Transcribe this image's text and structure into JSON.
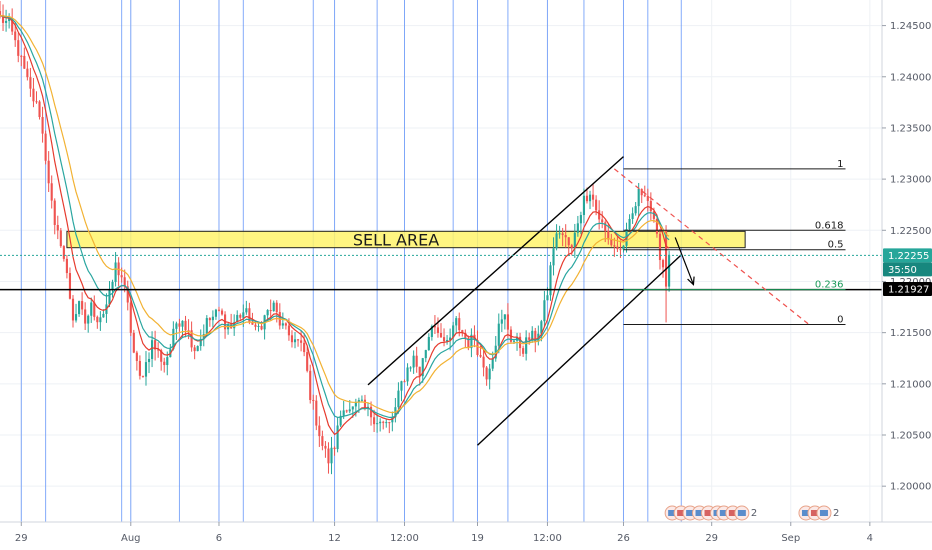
{
  "colors": {
    "bull": "#26a69a",
    "bear": "#ef5350",
    "ema_fast": "#e63b2e",
    "ema_mid": "#2aa6a0",
    "ema_slow": "#f2b233",
    "session_line": "#5b8ff9",
    "sell_area": "#fff36b",
    "fib_line": "#1a1a1a",
    "fib_236": "#1c9a5a",
    "grid": "#eef1f5",
    "badge_current": "#26a69a",
    "badge_timer": "#17877e",
    "badge_level": "#000000"
  },
  "chart_data": {
    "type": "candlestick",
    "symbol_hint": "GBP/USD-like price scale",
    "y_axis": {
      "side": "right",
      "ylim": [
        1.1965,
        1.2475
      ],
      "ticks": [
        "1.24500",
        "1.24000",
        "1.23500",
        "1.23000",
        "1.22500",
        "1.22000",
        "1.21500",
        "1.21000",
        "1.20500",
        "1.20000"
      ]
    },
    "x_axis": {
      "ticks": [
        {
          "label": "29",
          "i": 7
        },
        {
          "label": "Aug",
          "i": 43
        },
        {
          "label": "6",
          "i": 72
        },
        {
          "label": "12",
          "i": 110
        },
        {
          "label": "12:00",
          "i": 133
        },
        {
          "label": "19",
          "i": 157
        },
        {
          "label": "12:00",
          "i": 180
        },
        {
          "label": "26",
          "i": 205
        },
        {
          "label": "29",
          "i": 234
        },
        {
          "label": "Sep",
          "i": 260
        },
        {
          "label": "4",
          "i": 286
        }
      ]
    },
    "session_lines": [
      7,
      15,
      40,
      43,
      59,
      72,
      80,
      103,
      110,
      124,
      133,
      149,
      157,
      167,
      180,
      192,
      205,
      213,
      224
    ],
    "waypoints": [
      [
        0,
        1.2458
      ],
      [
        3,
        1.245
      ],
      [
        6,
        1.2425
      ],
      [
        10,
        1.2385
      ],
      [
        13,
        1.2365
      ],
      [
        16,
        1.23
      ],
      [
        18,
        1.225
      ],
      [
        20,
        1.224
      ],
      [
        22,
        1.2205
      ],
      [
        24,
        1.2165
      ],
      [
        26,
        1.2175
      ],
      [
        28,
        1.216
      ],
      [
        30,
        1.2175
      ],
      [
        32,
        1.2165
      ],
      [
        34,
        1.217
      ],
      [
        36,
        1.2185
      ],
      [
        38,
        1.2215
      ],
      [
        40,
        1.2205
      ],
      [
        42,
        1.2175
      ],
      [
        44,
        1.213
      ],
      [
        46,
        1.2105
      ],
      [
        48,
        1.212
      ],
      [
        50,
        1.214
      ],
      [
        52,
        1.213
      ],
      [
        54,
        1.212
      ],
      [
        56,
        1.2135
      ],
      [
        58,
        1.216
      ],
      [
        60,
        1.2165
      ],
      [
        62,
        1.215
      ],
      [
        64,
        1.2135
      ],
      [
        66,
        1.2145
      ],
      [
        68,
        1.216
      ],
      [
        70,
        1.2165
      ],
      [
        72,
        1.217
      ],
      [
        74,
        1.216
      ],
      [
        76,
        1.2155
      ],
      [
        78,
        1.2165
      ],
      [
        80,
        1.217
      ],
      [
        82,
        1.2165
      ],
      [
        84,
        1.215
      ],
      [
        86,
        1.216
      ],
      [
        88,
        1.217
      ],
      [
        90,
        1.2175
      ],
      [
        92,
        1.216
      ],
      [
        94,
        1.215
      ],
      [
        96,
        1.2145
      ],
      [
        98,
        1.214
      ],
      [
        100,
        1.213
      ],
      [
        102,
        1.209
      ],
      [
        104,
        1.2065
      ],
      [
        106,
        1.204
      ],
      [
        108,
        1.2025
      ],
      [
        110,
        1.204
      ],
      [
        112,
        1.207
      ],
      [
        114,
        1.208
      ],
      [
        116,
        1.2075
      ],
      [
        118,
        1.208
      ],
      [
        120,
        1.2075
      ],
      [
        122,
        1.207
      ],
      [
        124,
        1.2065
      ],
      [
        126,
        1.206
      ],
      [
        128,
        1.206
      ],
      [
        130,
        1.2075
      ],
      [
        132,
        1.21
      ],
      [
        134,
        1.2115
      ],
      [
        136,
        1.2125
      ],
      [
        138,
        1.211
      ],
      [
        140,
        1.2135
      ],
      [
        142,
        1.216
      ],
      [
        144,
        1.2155
      ],
      [
        146,
        1.2135
      ],
      [
        148,
        1.2145
      ],
      [
        150,
        1.216
      ],
      [
        152,
        1.215
      ],
      [
        154,
        1.214
      ],
      [
        156,
        1.2145
      ],
      [
        158,
        1.2125
      ],
      [
        160,
        1.211
      ],
      [
        162,
        1.213
      ],
      [
        164,
        1.2155
      ],
      [
        166,
        1.2165
      ],
      [
        168,
        1.2145
      ],
      [
        170,
        1.214
      ],
      [
        172,
        1.2135
      ],
      [
        174,
        1.2145
      ],
      [
        176,
        1.2145
      ],
      [
        178,
        1.216
      ],
      [
        180,
        1.219
      ],
      [
        182,
        1.2235
      ],
      [
        184,
        1.225
      ],
      [
        186,
        1.224
      ],
      [
        188,
        1.223
      ],
      [
        190,
        1.226
      ],
      [
        192,
        1.228
      ],
      [
        194,
        1.229
      ],
      [
        196,
        1.227
      ],
      [
        198,
        1.2255
      ],
      [
        200,
        1.224
      ],
      [
        202,
        1.2235
      ],
      [
        204,
        1.223
      ],
      [
        206,
        1.2245
      ],
      [
        208,
        1.2265
      ],
      [
        210,
        1.2285
      ],
      [
        212,
        1.229
      ],
      [
        214,
        1.227
      ],
      [
        216,
        1.224
      ],
      [
        218,
        1.2215
      ],
      [
        220,
        1.2226
      ]
    ],
    "special_candles": [
      {
        "i": 219,
        "o": 1.225,
        "h": 1.2255,
        "l": 1.216,
        "c": 1.2195
      },
      {
        "i": 220,
        "o": 1.2195,
        "h": 1.223,
        "l": 1.219,
        "c": 1.2226
      }
    ],
    "moving_averages": [
      {
        "period": 8,
        "color_key": "ema_fast"
      },
      {
        "period": 13,
        "color_key": "ema_mid"
      },
      {
        "period": 21,
        "color_key": "ema_slow"
      }
    ],
    "fib_retracement": {
      "i_start": 205,
      "i_end": 278,
      "levels": [
        {
          "ratio": "1",
          "price": 1.231
        },
        {
          "ratio": "0.618",
          "price": 1.225
        },
        {
          "ratio": "0.5",
          "price": 1.2231
        },
        {
          "ratio": "0.236",
          "price": 1.2192
        },
        {
          "ratio": "0",
          "price": 1.2158
        }
      ]
    },
    "sell_area": {
      "i_start": 22,
      "i_end": 245,
      "p_top": 1.2249,
      "p_bottom": 1.2233,
      "label": "SELL AREA"
    },
    "horizontal_line": {
      "price": 1.2192
    },
    "channel_lines": [
      {
        "i1": 121,
        "p1": 1.2099,
        "i2": 205,
        "p2": 1.2322
      },
      {
        "i1": 157,
        "p1": 1.204,
        "i2": 224,
        "p2": 1.2226
      }
    ],
    "dashed_projection": {
      "i1": 202,
      "p1": 1.231,
      "i2": 266,
      "p2": 1.2158
    },
    "arrow": {
      "i1": 222,
      "p1": 1.2243,
      "i2": 228,
      "p2": 1.2197
    },
    "price_badges": [
      {
        "kind": "current",
        "text": "1.22255",
        "price": 1.22255
      },
      {
        "kind": "timer",
        "text": "35:50",
        "price": 1.2214
      },
      {
        "kind": "level",
        "text": "1.21927",
        "price": 1.21927
      }
    ],
    "event_markers": [
      {
        "i": 221,
        "count": "2"
      },
      {
        "i": 230,
        "count": "8"
      },
      {
        "i": 238,
        "count": "2"
      },
      {
        "i": 265,
        "count": "2"
      }
    ]
  }
}
